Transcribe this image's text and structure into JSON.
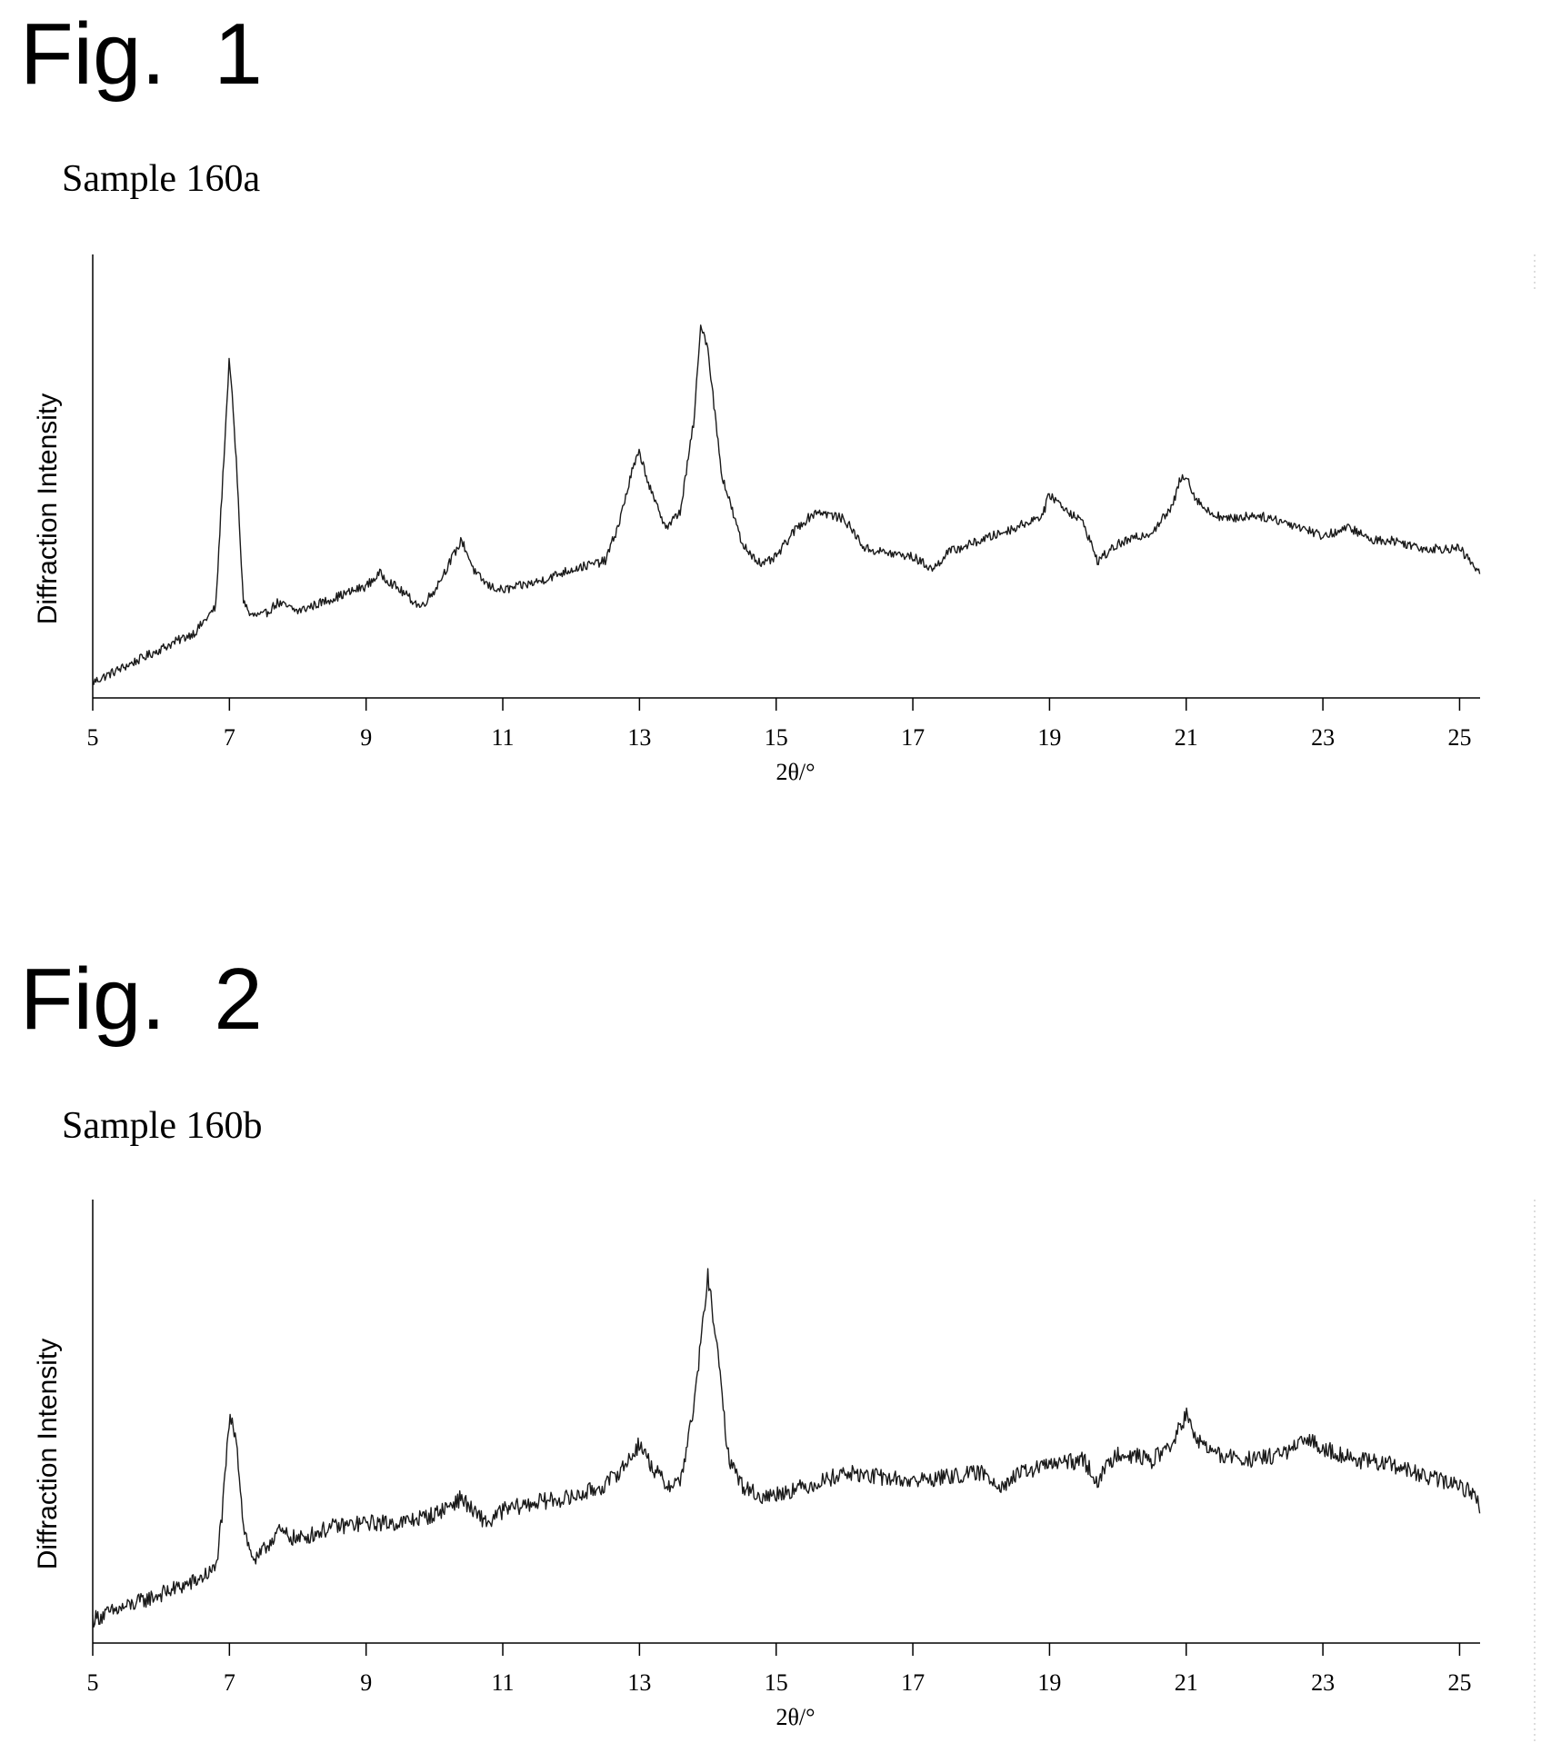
{
  "figures": [
    {
      "fig_label": "Fig.  1",
      "sample_label": "Sample  160a"
    },
    {
      "fig_label": "Fig.  2",
      "sample_label": "Sample  160b"
    }
  ],
  "chart_data": [
    {
      "type": "line",
      "title": "Sample  160a",
      "xlabel": "2θ/°",
      "ylabel": "Diffraction  Intensity",
      "xlim": [
        5,
        25.3
      ],
      "ylim": [
        0,
        1
      ],
      "x_ticks": [
        "5",
        "7",
        "9",
        "11",
        "13",
        "15",
        "17",
        "19",
        "21",
        "23",
        "25"
      ],
      "grid": false,
      "series": [
        {
          "x": [
            5.0,
            5.5,
            6.0,
            6.5,
            6.8,
            6.9,
            7.0,
            7.1,
            7.2,
            7.3,
            7.5,
            7.7,
            8.0,
            8.5,
            9.0,
            9.2,
            9.5,
            9.8,
            10.0,
            10.2,
            10.4,
            10.6,
            10.8,
            11.0,
            11.5,
            12.0,
            12.5,
            12.7,
            12.9,
            13.0,
            13.2,
            13.4,
            13.6,
            13.8,
            13.9,
            14.0,
            14.2,
            14.5,
            14.8,
            15.0,
            15.3,
            15.6,
            16.0,
            16.3,
            16.6,
            17.0,
            17.3,
            17.5,
            18.0,
            18.5,
            18.9,
            19.0,
            19.2,
            19.5,
            19.7,
            20.0,
            20.5,
            20.8,
            20.9,
            21.0,
            21.1,
            21.3,
            21.6,
            22.0,
            22.3,
            22.7,
            23.0,
            23.4,
            23.7,
            24.0,
            24.5,
            25.0,
            25.3
          ],
          "values": [
            0.02,
            0.06,
            0.1,
            0.14,
            0.2,
            0.5,
            0.8,
            0.55,
            0.22,
            0.18,
            0.18,
            0.21,
            0.19,
            0.22,
            0.25,
            0.28,
            0.24,
            0.2,
            0.24,
            0.3,
            0.36,
            0.28,
            0.25,
            0.24,
            0.26,
            0.29,
            0.31,
            0.4,
            0.53,
            0.57,
            0.46,
            0.39,
            0.43,
            0.65,
            0.88,
            0.82,
            0.52,
            0.35,
            0.3,
            0.32,
            0.39,
            0.43,
            0.41,
            0.34,
            0.33,
            0.32,
            0.29,
            0.33,
            0.36,
            0.39,
            0.42,
            0.47,
            0.44,
            0.4,
            0.31,
            0.35,
            0.38,
            0.44,
            0.5,
            0.52,
            0.47,
            0.43,
            0.41,
            0.42,
            0.41,
            0.39,
            0.37,
            0.39,
            0.36,
            0.36,
            0.34,
            0.34,
            0.28
          ]
        }
      ]
    },
    {
      "type": "line",
      "title": "Sample  160b",
      "xlabel": "2θ/°",
      "ylabel": "Diffraction  Intensity",
      "xlim": [
        5,
        25.3
      ],
      "ylim": [
        0,
        1
      ],
      "x_ticks": [
        "5",
        "7",
        "9",
        "11",
        "13",
        "15",
        "17",
        "19",
        "21",
        "23",
        "25"
      ],
      "grid": false,
      "series": [
        {
          "x": [
            5.0,
            5.5,
            6.0,
            6.5,
            6.8,
            6.9,
            7.0,
            7.1,
            7.2,
            7.3,
            7.4,
            7.7,
            8.0,
            8.5,
            9.0,
            9.5,
            10.0,
            10.2,
            10.4,
            10.6,
            10.8,
            11.0,
            11.5,
            12.0,
            12.5,
            12.8,
            13.0,
            13.2,
            13.4,
            13.6,
            13.8,
            14.0,
            14.1,
            14.3,
            14.5,
            14.8,
            15.0,
            15.5,
            16.0,
            16.5,
            17.0,
            17.5,
            18.0,
            18.3,
            18.6,
            19.0,
            19.5,
            19.7,
            20.0,
            20.5,
            20.8,
            21.0,
            21.1,
            21.3,
            21.5,
            22.0,
            22.5,
            22.8,
            23.0,
            23.5,
            24.0,
            24.5,
            25.0,
            25.2,
            25.3
          ],
          "values": [
            0.04,
            0.07,
            0.1,
            0.13,
            0.16,
            0.3,
            0.52,
            0.48,
            0.27,
            0.2,
            0.18,
            0.25,
            0.23,
            0.26,
            0.27,
            0.27,
            0.29,
            0.31,
            0.33,
            0.29,
            0.27,
            0.3,
            0.32,
            0.33,
            0.36,
            0.41,
            0.46,
            0.4,
            0.36,
            0.37,
            0.55,
            0.86,
            0.74,
            0.43,
            0.36,
            0.33,
            0.34,
            0.36,
            0.39,
            0.38,
            0.37,
            0.38,
            0.39,
            0.36,
            0.39,
            0.41,
            0.42,
            0.37,
            0.44,
            0.42,
            0.46,
            0.53,
            0.48,
            0.45,
            0.43,
            0.42,
            0.44,
            0.47,
            0.45,
            0.42,
            0.41,
            0.38,
            0.36,
            0.34,
            0.31
          ]
        }
      ]
    }
  ]
}
